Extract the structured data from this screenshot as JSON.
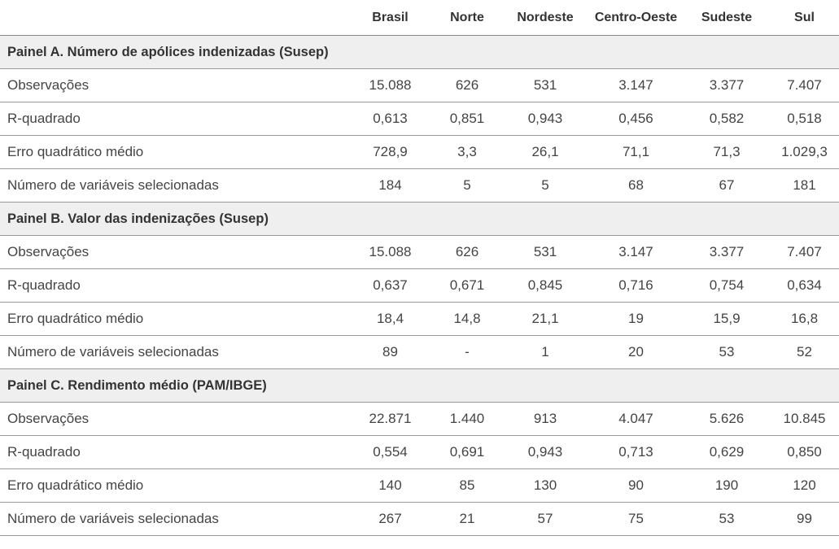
{
  "columns": [
    "",
    "Brasil",
    "Norte",
    "Nordeste",
    "Centro-Oeste",
    "Sudeste",
    "Sul"
  ],
  "panels": [
    {
      "title": "Painel A. Número de apólices indenizadas (Susep)",
      "rows": [
        {
          "label": "Observações",
          "values": [
            "15.088",
            "626",
            "531",
            "3.147",
            "3.377",
            "7.407"
          ]
        },
        {
          "label": "R-quadrado",
          "values": [
            "0,613",
            "0,851",
            "0,943",
            "0,456",
            "0,582",
            "0,518"
          ]
        },
        {
          "label": "Erro quadrático médio",
          "values": [
            "728,9",
            "3,3",
            "26,1",
            "71,1",
            "71,3",
            "1.029,3"
          ]
        },
        {
          "label": "Número de variáveis selecionadas",
          "values": [
            "184",
            "5",
            "5",
            "68",
            "67",
            "181"
          ]
        }
      ]
    },
    {
      "title": "Painel B. Valor das indenizações (Susep)",
      "rows": [
        {
          "label": "Observações",
          "values": [
            "15.088",
            "626",
            "531",
            "3.147",
            "3.377",
            "7.407"
          ]
        },
        {
          "label": "R-quadrado",
          "values": [
            "0,637",
            "0,671",
            "0,845",
            "0,716",
            "0,754",
            "0,634"
          ]
        },
        {
          "label": "Erro quadrático médio",
          "values": [
            "18,4",
            "14,8",
            "21,1",
            "19",
            "15,9",
            "16,8"
          ]
        },
        {
          "label": "Número de variáveis selecionadas",
          "values": [
            "89",
            "-",
            "1",
            "20",
            "53",
            "52"
          ]
        }
      ]
    },
    {
      "title": "Painel C. Rendimento médio (PAM/IBGE)",
      "rows": [
        {
          "label": "Observações",
          "values": [
            "22.871",
            "1.440",
            "913",
            "4.047",
            "5.626",
            "10.845"
          ]
        },
        {
          "label": "R-quadrado",
          "values": [
            "0,554",
            "0,691",
            "0,943",
            "0,713",
            "0,629",
            "0,850"
          ]
        },
        {
          "label": "Erro quadrático médio",
          "values": [
            "140",
            "85",
            "130",
            "90",
            "190",
            "120"
          ]
        },
        {
          "label": "Número de variáveis selecionadas",
          "values": [
            "267",
            "21",
            "57",
            "75",
            "53",
            "99"
          ]
        }
      ]
    }
  ]
}
